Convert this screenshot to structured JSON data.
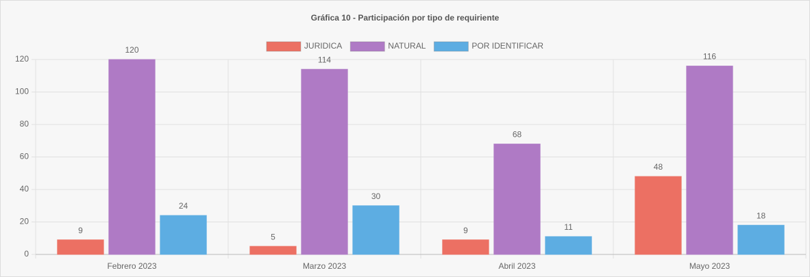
{
  "chart_data": {
    "type": "bar",
    "title": "Gráfica 10 - Participación por tipo de requiriente",
    "categories": [
      "Febrero 2023",
      "Marzo 2023",
      "Abril 2023",
      "Mayo 2023"
    ],
    "series": [
      {
        "name": "JURIDICA",
        "color": "#ec7063",
        "values": [
          9,
          5,
          9,
          48
        ]
      },
      {
        "name": "NATURAL",
        "color": "#af7ac5",
        "values": [
          120,
          114,
          68,
          116
        ]
      },
      {
        "name": "POR IDENTIFICAR",
        "color": "#5dade2",
        "values": [
          24,
          30,
          11,
          18
        ]
      }
    ],
    "ylim": [
      0,
      120
    ],
    "yticks": [
      0,
      20,
      40,
      60,
      80,
      100,
      120
    ],
    "grid": true,
    "legend": "top"
  }
}
